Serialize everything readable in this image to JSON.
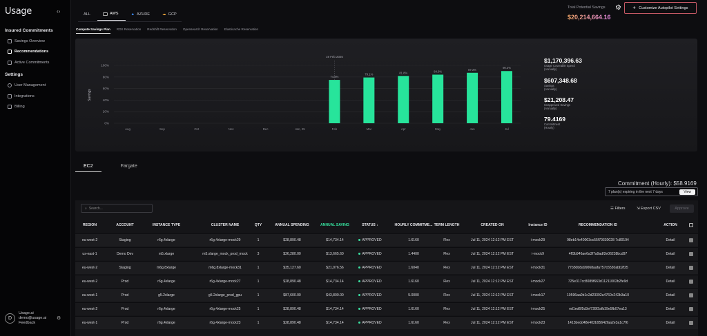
{
  "sidebar": {
    "logo": "Usage",
    "sections": [
      {
        "title": "Insured Commitments",
        "items": [
          "Savings Overview",
          "Recommendations",
          "Active Commitments"
        ]
      },
      {
        "title": "Settings",
        "items": [
          "User Management",
          "Integrations",
          "Billing"
        ]
      }
    ],
    "active_item": "Recommendations",
    "user": {
      "initial": "D",
      "name": "Usage.ai",
      "email": "demo@usage.ai",
      "feedback": "Feedback"
    }
  },
  "cloud_tabs": [
    "ALL",
    "AWS",
    "AZURE",
    "GCP"
  ],
  "active_cloud": "AWS",
  "header": {
    "savings_label": "Total Potential Savings",
    "savings_value": "$20,214,664.16",
    "autopilot_button": "Customize Autopilot Settings"
  },
  "plan_tabs": [
    "Compute Savings Plan",
    "RDS Reservation",
    "Redshift Reservation",
    "Opensearch Reservation",
    "Elasticache Reservation"
  ],
  "chart_data": {
    "type": "bar",
    "categories": [
      "Aug",
      "Sep",
      "Oct",
      "Nov",
      "Dec",
      "Jan, 25",
      "Feb",
      "Mar",
      "Apr",
      "May",
      "Jun",
      "Jul"
    ],
    "values": [
      null,
      null,
      null,
      null,
      null,
      null,
      74.9,
      79.1,
      81.8,
      84.0,
      87.2,
      90.2
    ],
    "value_labels": [
      "",
      "",
      "",
      "",
      "",
      "",
      "74.9%",
      "79.1%",
      "81.8%",
      "84.0%",
      "87.2%",
      "90.2%"
    ],
    "ylabel": "Savings",
    "yticks": [
      "0%",
      "20%",
      "40%",
      "60%",
      "80%",
      "100%"
    ],
    "ylim": [
      0,
      100
    ],
    "annotation": "19 Feb 2026",
    "bar_color": "#27e49b",
    "grid": true
  },
  "stats": [
    {
      "value": "$1,170,396.63",
      "label": [
        "Usage Coverable Spend",
        "(Annually)"
      ]
    },
    {
      "value": "$607,348.68",
      "label": [
        "Savings",
        "(Annually)"
      ]
    },
    {
      "value": "$21,208.47",
      "label": [
        "Unapproved Savings",
        "(Annually)"
      ]
    },
    {
      "value": "79.4169",
      "label": [
        "Commitment",
        "(Hourly)"
      ]
    }
  ],
  "instance_tabs": [
    "EC2",
    "Fargate"
  ],
  "commitment": "Commitment (Hourly):  $58.9169",
  "expiring": {
    "text": "7 plan(s) expiring in the next 7 days",
    "button": "View"
  },
  "toolbar": {
    "search_placeholder": "Search...",
    "filters": "Filters",
    "export": "Export CSV",
    "approve": "Approve"
  },
  "table": {
    "headers": [
      "REGION",
      "ACCOUNT",
      "INSTANCE TYPE",
      "CLUSTER NAME",
      "QTY",
      "ANNUAL SPENDING",
      "ANNUAL SAVING",
      "STATUS",
      "HOURLY COMMITME...",
      "TERM LENGTH",
      "CREATED ON",
      "Instance ID",
      "RECOMMENDATION ID",
      "ACTION"
    ],
    "rows": [
      [
        "eu-west-2",
        "Staging",
        "r6g.4xlarge",
        "r6g.4xlarge-mock29",
        "1",
        "$28,890.48",
        "$14,734.14",
        "APPROVED",
        "1.6160",
        "Flex",
        "Jul 11, 2024 12:12 PM EST",
        "i-mock29",
        "98eb14e40003cc55f79330028 7c80194",
        "Detail"
      ],
      [
        "us-east-1",
        "Demo Dev",
        "m5.xlarge",
        "m5.xlarge_mock_prod_mock",
        "3",
        "$26,280.00",
        "$13,665.60",
        "APPROVED",
        "1.4400",
        "Flex",
        "Jul 11, 2024 12:12 PM EST",
        "i-mock9",
        "4ff3b946ae6a3f7a9adf2e06238bcd97",
        "Detail"
      ],
      [
        "eu-west-2",
        "Staging",
        "m6g.8xlarge",
        "m6g.8xlarge-mock31",
        "1",
        "$35,127.60",
        "$21,076.56",
        "APPROVED",
        "1.6040",
        "Flex",
        "Jul 11, 2024 12:12 PM EST",
        "i-mock31",
        "77b50b8a99068aafa757c6530abb2f25",
        "Detail"
      ],
      [
        "eu-west-2",
        "Prod",
        "r6g.4xlarge",
        "r6g.4xlarge-mock27",
        "1",
        "$28,890.48",
        "$14,734.14",
        "APPROVED",
        "1.6160",
        "Flex",
        "Jul 11, 2024 12:12 PM EST",
        "i-mock27",
        "725e317cc8089f663d11211002b2fe9d",
        "Detail"
      ],
      [
        "eu-west-1",
        "Prod",
        "g5.2xlarge",
        "g5.2xlarge_prod_gpu",
        "1",
        "$87,600.00",
        "$43,800.00",
        "APPROVED",
        "5.0000",
        "Flex",
        "Jul 11, 2024 12:12 PM EST",
        "i-mock17",
        "10596aa0b1c2d23392a4760c242b3a10",
        "Detail"
      ],
      [
        "eu-west-2",
        "Prod",
        "r6g.4xlarge",
        "r6g.4xlarge-mock25",
        "1",
        "$28,890.48",
        "$14,734.14",
        "APPROVED",
        "1.6160",
        "Flex",
        "Jul 11, 2024 12:12 PM EST",
        "i-mock25",
        "ed1ed6f5d3ef728f2afb39e5fb07ea13",
        "Detail"
      ],
      [
        "eu-west-1",
        "Prod",
        "r6g.4xlarge",
        "r6g.4xlarge-mock23",
        "1",
        "$28,890.48",
        "$14,734.14",
        "APPROVED",
        "1.6160",
        "Flex",
        "Jul 11, 2024 12:12 PM EST",
        "i-mock23",
        "1413bedd48e402b95642faa2e3a1c7f6",
        "Detail"
      ]
    ]
  }
}
